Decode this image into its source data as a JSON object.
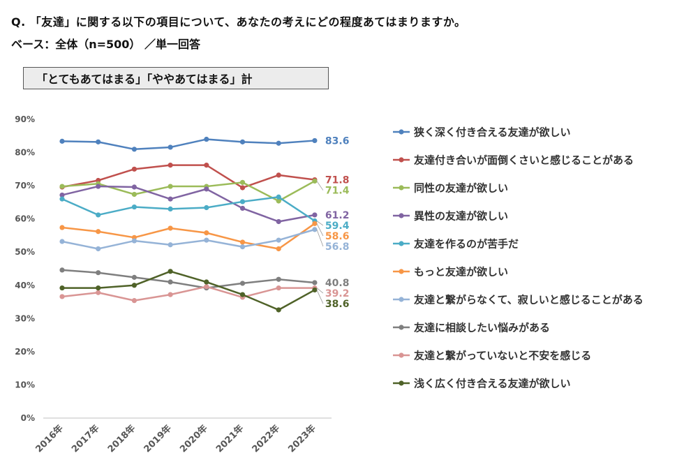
{
  "header": {
    "question": "Q. 「友達」に関する以下の項目について、あなたの考えにどの程度あてはまりますか。",
    "base": "ベース：全体（n=500） ／単一回答"
  },
  "chart_data": {
    "type": "line",
    "title": "「とてもあてはまる」「ややあてはまる」計",
    "categories": [
      "2016年",
      "2017年",
      "2018年",
      "2019年",
      "2020年",
      "2021年",
      "2022年",
      "2023年"
    ],
    "y_ticks": [
      "0%",
      "10%",
      "20%",
      "30%",
      "40%",
      "50%",
      "60%",
      "70%",
      "80%",
      "90%"
    ],
    "ylim": [
      0,
      90
    ],
    "grid": false,
    "legend_position": "right",
    "series": [
      {
        "name": "狭く深く付き合える友達が欲しい",
        "color": "#4F81BD",
        "values": [
          83.4,
          83.2,
          81.0,
          81.6,
          84.0,
          83.2,
          82.8,
          83.6
        ],
        "end_label": "83.6"
      },
      {
        "name": "友達付き合いが面倒くさいと感じることがある",
        "color": "#C0504D",
        "values": [
          69.6,
          71.6,
          75.0,
          76.2,
          76.2,
          69.4,
          73.2,
          71.8
        ],
        "end_label": "71.8"
      },
      {
        "name": "同性の友達が欲しい",
        "color": "#9BBB59",
        "values": [
          69.8,
          70.6,
          67.4,
          69.8,
          69.8,
          71.0,
          65.4,
          71.4
        ],
        "end_label": "71.4"
      },
      {
        "name": "異性の友達が欲しい",
        "color": "#8064A2",
        "values": [
          67.2,
          69.8,
          69.6,
          66.0,
          69.0,
          63.2,
          59.2,
          61.2
        ],
        "end_label": "61.2"
      },
      {
        "name": "友達を作るのが苦手だ",
        "color": "#4BACC6",
        "values": [
          66.0,
          61.2,
          63.6,
          63.0,
          63.4,
          65.2,
          66.6,
          59.4
        ],
        "end_label": "59.4"
      },
      {
        "name": "もっと友達が欲しい",
        "color": "#F79646",
        "values": [
          57.4,
          56.2,
          54.4,
          57.2,
          55.8,
          53.0,
          51.0,
          58.6
        ],
        "end_label": "58.6"
      },
      {
        "name": "友達と繋がらなくて、寂しいと感じることがある",
        "color": "#95B3D7",
        "values": [
          53.2,
          51.0,
          53.4,
          52.2,
          53.6,
          51.6,
          53.6,
          56.8
        ],
        "end_label": "56.8"
      },
      {
        "name": "友達に相談したい悩みがある",
        "color": "#7F7F7F",
        "values": [
          44.6,
          43.8,
          42.4,
          41.0,
          39.2,
          40.6,
          41.8,
          40.8
        ],
        "end_label": "40.8"
      },
      {
        "name": "友達と繋がっていないと不安を感じる",
        "color": "#D99594",
        "values": [
          36.6,
          37.8,
          35.4,
          37.2,
          39.6,
          36.4,
          39.2,
          39.2
        ],
        "end_label": "39.2"
      },
      {
        "name": "浅く広く付き合える友達が欲しい",
        "color": "#4F6228",
        "values": [
          39.2,
          39.2,
          40.0,
          44.2,
          41.0,
          37.2,
          32.6,
          38.6
        ],
        "end_label": "38.6"
      }
    ]
  }
}
